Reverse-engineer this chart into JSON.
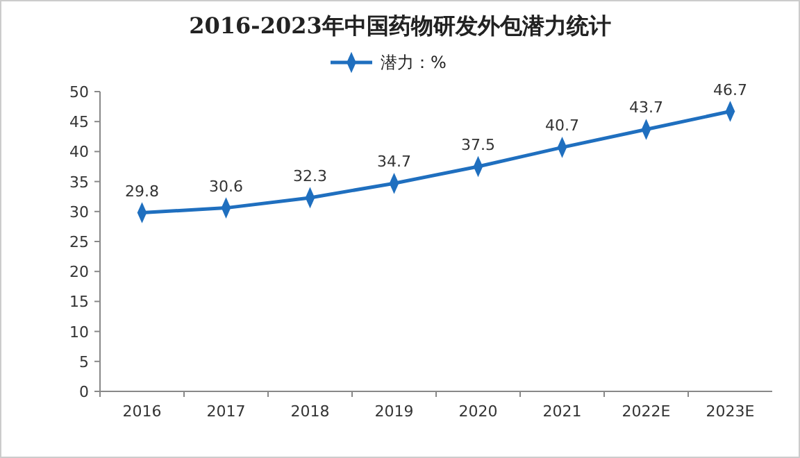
{
  "chart_data": {
    "type": "line",
    "title": "2016-2023年中国药物研发外包潜力统计",
    "categories": [
      "2016",
      "2017",
      "2018",
      "2019",
      "2020",
      "2021",
      "2022E",
      "2023E"
    ],
    "series": [
      {
        "name": "潜力：%",
        "color": "#1f6fbf",
        "values": [
          29.8,
          30.6,
          32.3,
          34.7,
          37.5,
          40.7,
          43.7,
          46.7
        ]
      }
    ],
    "ylim": [
      0,
      50
    ],
    "yticks": [
      0,
      5,
      10,
      15,
      20,
      25,
      30,
      35,
      40,
      45,
      50
    ],
    "data_labels": true,
    "legend": "top",
    "marker": "diamond",
    "grid": false
  }
}
